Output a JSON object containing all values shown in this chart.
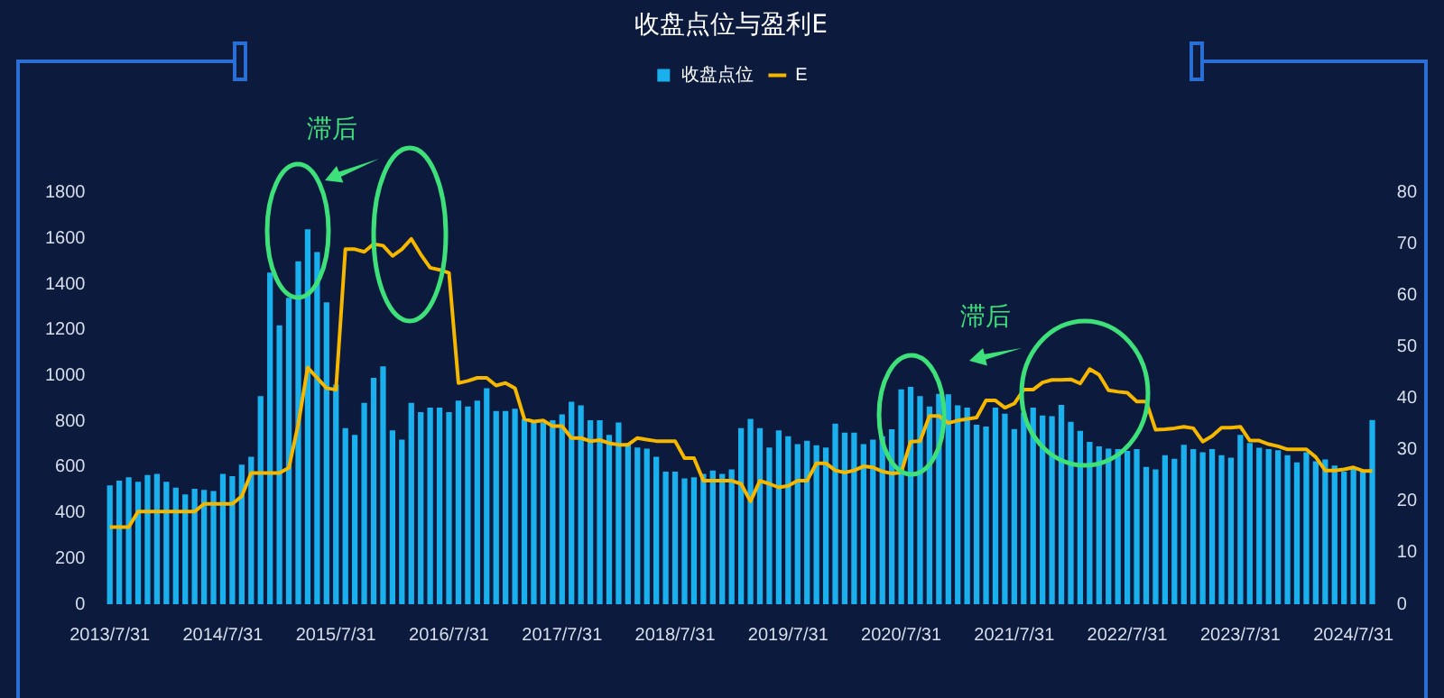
{
  "chart_data": {
    "type": "bar",
    "title": "收盘点位与盈利E",
    "categories": [
      "2013/7/31",
      null,
      null,
      null,
      null,
      null,
      null,
      null,
      null,
      null,
      null,
      null,
      "2014/7/31",
      null,
      null,
      null,
      null,
      null,
      null,
      null,
      null,
      null,
      null,
      null,
      "2015/7/31",
      null,
      null,
      null,
      null,
      null,
      null,
      null,
      null,
      null,
      null,
      null,
      "2016/7/31",
      null,
      null,
      null,
      null,
      null,
      null,
      null,
      null,
      null,
      null,
      null,
      "2017/7/31",
      null,
      null,
      null,
      null,
      null,
      null,
      null,
      null,
      null,
      null,
      null,
      "2018/7/31",
      null,
      null,
      null,
      null,
      null,
      null,
      null,
      null,
      null,
      null,
      null,
      "2019/7/31",
      null,
      null,
      null,
      null,
      null,
      null,
      null,
      null,
      null,
      null,
      null,
      "2020/7/31",
      null,
      null,
      null,
      null,
      null,
      null,
      null,
      null,
      null,
      null,
      null,
      "2021/7/31",
      null,
      null,
      null,
      null,
      null,
      null,
      null,
      null,
      null,
      null,
      null,
      "2022/7/31",
      null,
      null,
      null,
      null,
      null,
      null,
      null,
      null,
      null,
      null,
      null,
      "2023/7/31",
      null,
      null,
      null,
      null,
      null,
      null,
      null,
      null,
      null,
      null,
      null,
      "2024/7/31",
      null,
      null
    ],
    "series": [
      {
        "name": "收盘点位",
        "color": "#1ab0ee",
        "values": [
          520,
          540,
          555,
          535,
          565,
          570,
          535,
          510,
          480,
          505,
          500,
          495,
          570,
          560,
          610,
          645,
          910,
          1450,
          1220,
          1340,
          1500,
          1640,
          1540,
          1320,
          960,
          770,
          740,
          880,
          990,
          1040,
          760,
          720,
          880,
          840,
          860,
          860,
          840,
          890,
          865,
          890,
          945,
          845,
          845,
          855,
          810,
          800,
          795,
          805,
          830,
          885,
          870,
          805,
          805,
          740,
          795,
          705,
          685,
          680,
          645,
          580,
          580,
          550,
          555,
          570,
          585,
          570,
          590,
          770,
          810,
          770,
          685,
          760,
          735,
          700,
          715,
          695,
          685,
          790,
          750,
          750,
          700,
          720,
          735,
          765,
          940,
          950,
          910,
          865,
          920,
          918,
          870,
          860,
          785,
          777,
          860,
          833,
          766,
          838,
          860,
          825,
          822,
          872,
          798,
          758,
          710,
          690,
          680,
          678,
          670,
          678,
          600,
          590,
          652,
          636,
          697,
          678,
          665,
          678,
          652,
          641,
          740,
          705,
          684,
          678,
          673,
          652,
          620,
          665,
          625,
          633,
          606,
          580,
          593,
          585,
          806
        ]
      },
      {
        "name": "E",
        "type": "line",
        "axis": "y2",
        "color": "#f5b700",
        "values": [
          15,
          15,
          15,
          18,
          18,
          18,
          18,
          18,
          18,
          18,
          19.5,
          19.5,
          19.5,
          19.5,
          21,
          25.5,
          25.5,
          25.5,
          25.5,
          26.5,
          35,
          46,
          44,
          42,
          41.7,
          69,
          69,
          68.5,
          70,
          69.7,
          67.7,
          69,
          71,
          68,
          65.4,
          65,
          64.4,
          43,
          43.4,
          44,
          44,
          42.5,
          43,
          42,
          36,
          35.5,
          35.7,
          34.6,
          34.6,
          32.3,
          32.3,
          31.7,
          31.9,
          31.3,
          31,
          31,
          32.3,
          32,
          31.7,
          31.7,
          31.7,
          28.4,
          28.4,
          24,
          24,
          24,
          24,
          23.4,
          20,
          24,
          23.4,
          22.7,
          23,
          24,
          24,
          27.4,
          27.4,
          26,
          25.6,
          26,
          26.8,
          26.6,
          25.8,
          25.4,
          25.6,
          31.6,
          31.7,
          36.6,
          36.6,
          35.2,
          35.7,
          36,
          36.3,
          39.6,
          39.6,
          38.2,
          39,
          41.7,
          41.7,
          43.1,
          43.6,
          43.6,
          43.7,
          42.9,
          45.7,
          44.6,
          41.6,
          41.3,
          41.1,
          39.4,
          39.4,
          33.9,
          34,
          34.2,
          34.5,
          34.2,
          31.6,
          32.7,
          34.3,
          34.3,
          34.5,
          31.8,
          31.8,
          31.1,
          30.7,
          30.1,
          30.1,
          30.1,
          28.6,
          26,
          26,
          26.2,
          26.6,
          25.9,
          25.9
        ]
      }
    ],
    "ylim": [
      0,
      1800
    ],
    "yticks": [
      0,
      200,
      400,
      600,
      800,
      1000,
      1200,
      1400,
      1600,
      1800
    ],
    "y2lim": [
      0,
      80
    ],
    "y2ticks": [
      0,
      10,
      20,
      30,
      40,
      50,
      60,
      70,
      80
    ],
    "grid": false,
    "legend": "top",
    "marker": "none",
    "line_style": "solid",
    "annotations": [
      "滞后",
      "滞后"
    ]
  }
}
